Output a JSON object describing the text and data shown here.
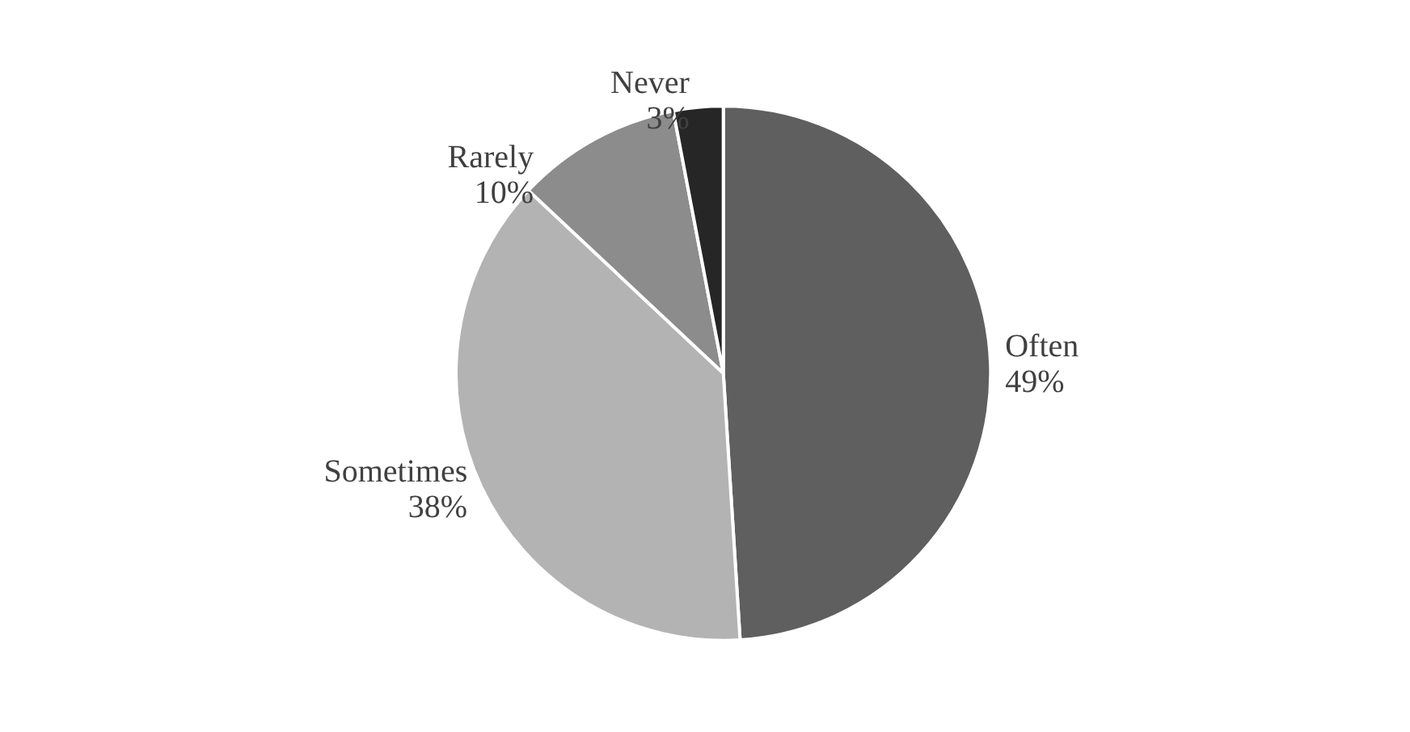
{
  "chart_data": {
    "type": "pie",
    "categories": [
      "Often",
      "Sometimes",
      "Rarely",
      "Never"
    ],
    "values": [
      49,
      38,
      10,
      3
    ],
    "colors": [
      "#5f5f5f",
      "#b3b3b3",
      "#8c8c8c",
      "#262626"
    ],
    "value_labels": [
      "49%",
      "38%",
      "10%",
      "3%"
    ],
    "legend": false
  }
}
